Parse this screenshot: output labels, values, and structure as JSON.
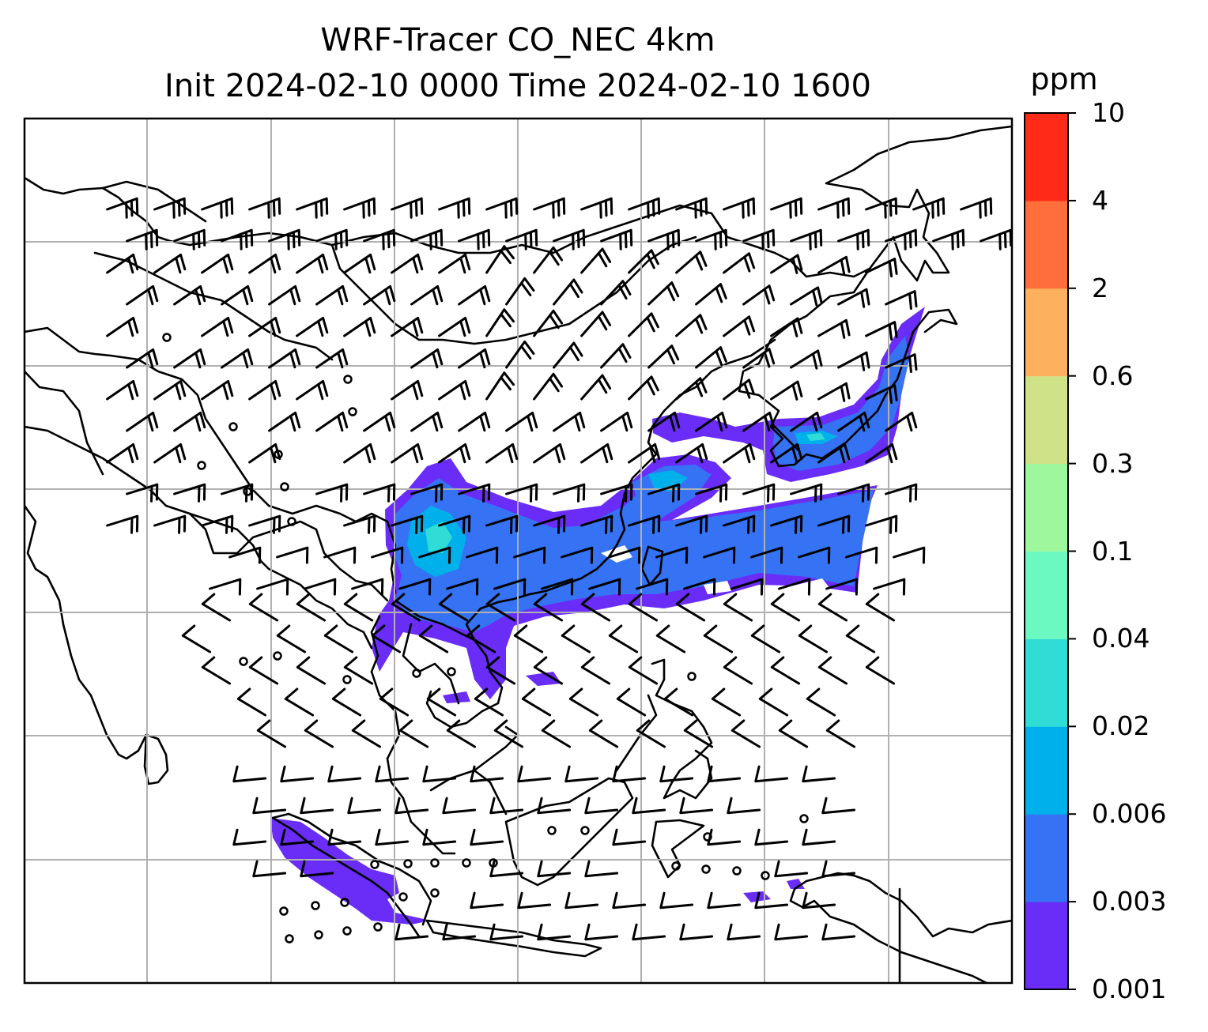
{
  "title": {
    "line1": "WRF-Tracer CO_NEC 4km",
    "line2": "Init 2024-02-10 0000 Time 2024-02-10 1600"
  },
  "colorbar": {
    "unit": "ppm",
    "ticks": [
      "10",
      "4",
      "2",
      "0.6",
      "0.3",
      "0.1",
      "0.04",
      "0.02",
      "0.006",
      "0.003",
      "0.001"
    ],
    "colors": [
      "#6a2cf7",
      "#3573f4",
      "#00b0ea",
      "#30ddd6",
      "#6cf9c1",
      "#9ef79c",
      "#d0e287",
      "#fdb15f",
      "#ff6e3b",
      "#ff2a17"
    ]
  },
  "plume_colors": {
    "outer": "#6a2cf7",
    "mid": "#3573f4",
    "inner": "#00b0ea",
    "core": "#30ddd6"
  },
  "calm_markers": "circle-icon",
  "wind_barbs": "wind-barb-icon"
}
